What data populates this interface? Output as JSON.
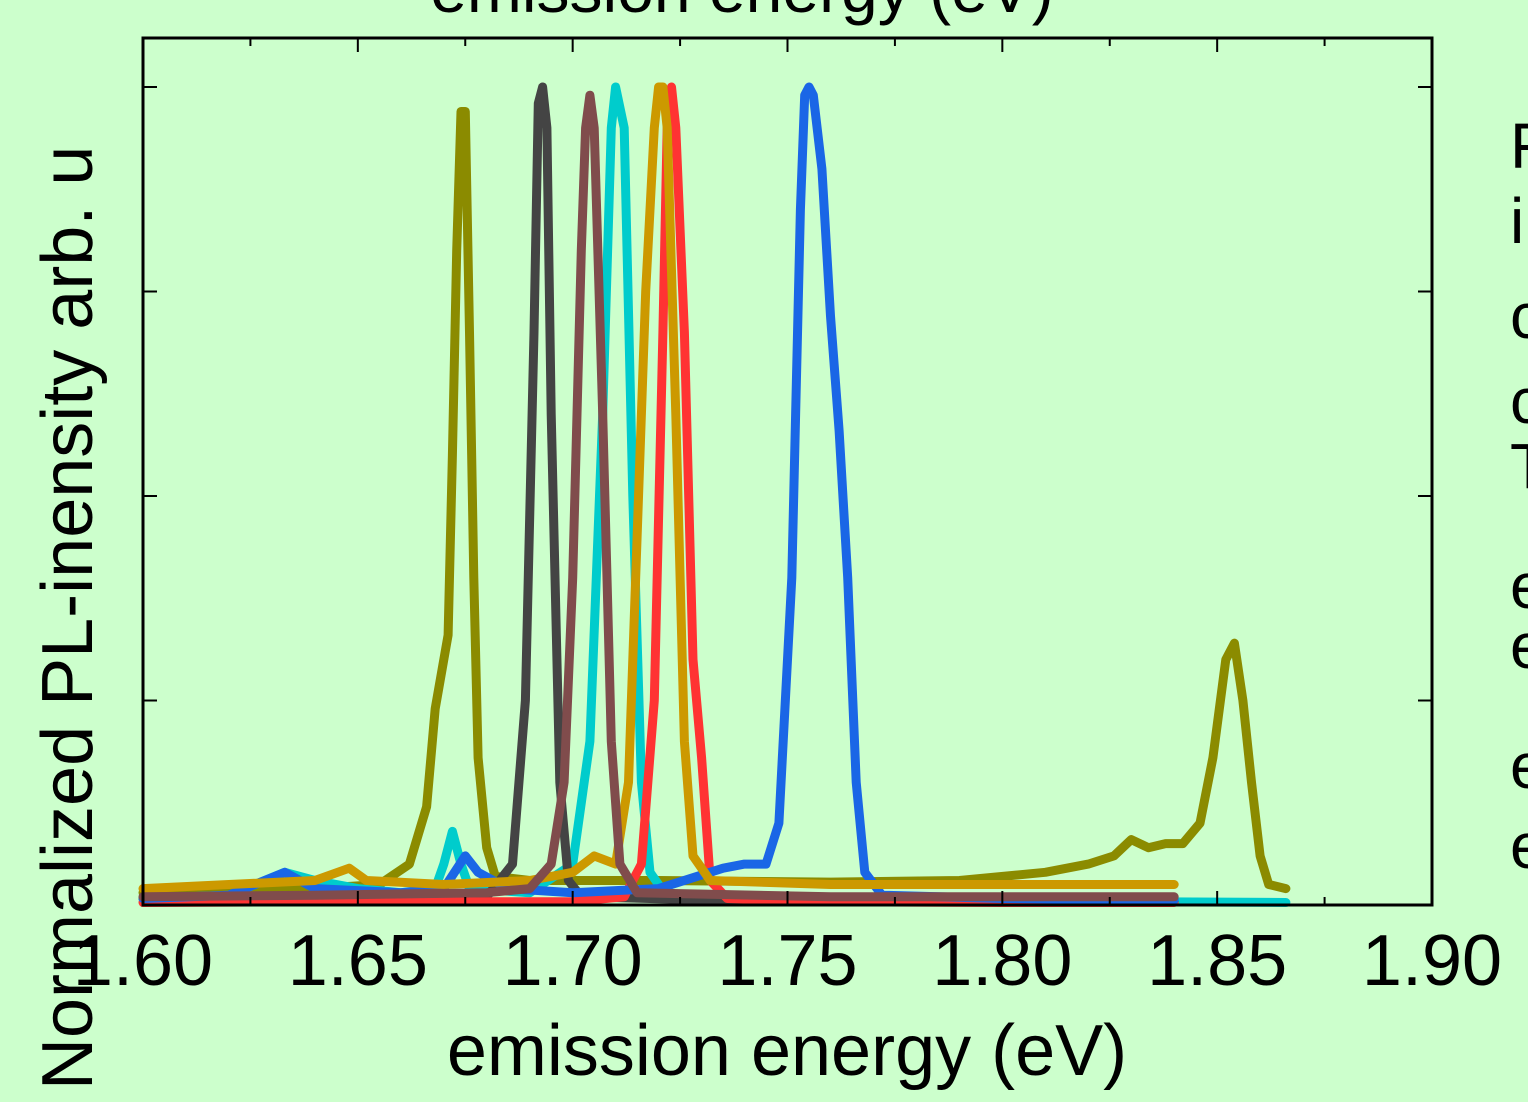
{
  "chart_data": {
    "type": "line",
    "title": "emission energy (eV)",
    "xlabel": "emission energy (eV)",
    "ylabel": "Normalized PL-inensity arb. u",
    "xlim": [
      1.6,
      1.9
    ],
    "ylim": [
      0,
      1.02
    ],
    "x_tick_labels": [
      "1.60",
      "1.65",
      "1.70",
      "1.75",
      "1.80",
      "1.85",
      "1.90"
    ],
    "x_ticks": [
      1.6,
      1.65,
      1.7,
      1.75,
      1.8,
      1.85,
      1.9
    ],
    "y_ticks": [
      0.25,
      0.5,
      0.75,
      1.0
    ],
    "grid": false,
    "background": "#ccffcc",
    "side_text": [
      "F",
      "i",
      "c",
      "c",
      "T",
      "e",
      "e",
      "e",
      "e"
    ],
    "series": [
      {
        "color": "#8b8b00",
        "values": [
          [
            1.6,
            0.015
          ],
          [
            1.62,
            0.017
          ],
          [
            1.64,
            0.02
          ],
          [
            1.655,
            0.025
          ],
          [
            1.662,
            0.05
          ],
          [
            1.666,
            0.12
          ],
          [
            1.668,
            0.24
          ],
          [
            1.67,
            0.3
          ],
          [
            1.671,
            0.33
          ],
          [
            1.672,
            0.55
          ],
          [
            1.673,
            0.8
          ],
          [
            1.674,
            0.97
          ],
          [
            1.675,
            0.97
          ],
          [
            1.676,
            0.7
          ],
          [
            1.677,
            0.4
          ],
          [
            1.678,
            0.18
          ],
          [
            1.68,
            0.07
          ],
          [
            1.682,
            0.035
          ],
          [
            1.69,
            0.03
          ],
          [
            1.7,
            0.03
          ],
          [
            1.72,
            0.03
          ],
          [
            1.76,
            0.028
          ],
          [
            1.79,
            0.03
          ],
          [
            1.81,
            0.04
          ],
          [
            1.82,
            0.05
          ],
          [
            1.826,
            0.06
          ],
          [
            1.83,
            0.08
          ],
          [
            1.834,
            0.07
          ],
          [
            1.838,
            0.075
          ],
          [
            1.842,
            0.075
          ],
          [
            1.846,
            0.1
          ],
          [
            1.849,
            0.18
          ],
          [
            1.852,
            0.3
          ],
          [
            1.854,
            0.32
          ],
          [
            1.856,
            0.25
          ],
          [
            1.858,
            0.15
          ],
          [
            1.86,
            0.06
          ],
          [
            1.862,
            0.025
          ],
          [
            1.866,
            0.02
          ]
        ]
      },
      {
        "color": "#00cccc",
        "values": [
          [
            1.6,
            0.008
          ],
          [
            1.62,
            0.012
          ],
          [
            1.633,
            0.04
          ],
          [
            1.64,
            0.03
          ],
          [
            1.65,
            0.02
          ],
          [
            1.66,
            0.015
          ],
          [
            1.668,
            0.02
          ],
          [
            1.67,
            0.05
          ],
          [
            1.672,
            0.09
          ],
          [
            1.674,
            0.05
          ],
          [
            1.676,
            0.02
          ],
          [
            1.69,
            0.015
          ],
          [
            1.7,
            0.05
          ],
          [
            1.704,
            0.2
          ],
          [
            1.707,
            0.6
          ],
          [
            1.709,
            0.95
          ],
          [
            1.71,
            1.0
          ],
          [
            1.712,
            0.95
          ],
          [
            1.714,
            0.5
          ],
          [
            1.716,
            0.15
          ],
          [
            1.718,
            0.04
          ],
          [
            1.722,
            0.01
          ],
          [
            1.76,
            0.005
          ],
          [
            1.8,
            0.005
          ],
          [
            1.866,
            0.003
          ]
        ]
      },
      {
        "color": "#444444",
        "values": [
          [
            1.6,
            0.008
          ],
          [
            1.64,
            0.01
          ],
          [
            1.68,
            0.01
          ],
          [
            1.686,
            0.05
          ],
          [
            1.689,
            0.25
          ],
          [
            1.691,
            0.7
          ],
          [
            1.692,
            0.98
          ],
          [
            1.693,
            1.0
          ],
          [
            1.694,
            0.95
          ],
          [
            1.695,
            0.6
          ],
          [
            1.697,
            0.15
          ],
          [
            1.699,
            0.03
          ],
          [
            1.702,
            0.01
          ],
          [
            1.74,
            0.005
          ],
          [
            1.8,
            0.004
          ],
          [
            1.84,
            0.004
          ]
        ]
      },
      {
        "color": "#ff3333",
        "values": [
          [
            1.6,
            0.003
          ],
          [
            1.64,
            0.004
          ],
          [
            1.7,
            0.004
          ],
          [
            1.712,
            0.01
          ],
          [
            1.716,
            0.05
          ],
          [
            1.719,
            0.25
          ],
          [
            1.721,
            0.7
          ],
          [
            1.722,
            0.95
          ],
          [
            1.723,
            1.0
          ],
          [
            1.724,
            0.95
          ],
          [
            1.726,
            0.7
          ],
          [
            1.728,
            0.3
          ],
          [
            1.73,
            0.18
          ],
          [
            1.732,
            0.03
          ],
          [
            1.736,
            0.008
          ],
          [
            1.76,
            0.004
          ],
          [
            1.8,
            0.003
          ],
          [
            1.84,
            0.003
          ]
        ]
      },
      {
        "color": "#1a66e6",
        "values": [
          [
            1.6,
            0.008
          ],
          [
            1.62,
            0.012
          ],
          [
            1.633,
            0.04
          ],
          [
            1.64,
            0.02
          ],
          [
            1.66,
            0.015
          ],
          [
            1.67,
            0.02
          ],
          [
            1.675,
            0.06
          ],
          [
            1.678,
            0.04
          ],
          [
            1.685,
            0.02
          ],
          [
            1.7,
            0.015
          ],
          [
            1.72,
            0.02
          ],
          [
            1.735,
            0.045
          ],
          [
            1.74,
            0.05
          ],
          [
            1.745,
            0.05
          ],
          [
            1.748,
            0.1
          ],
          [
            1.751,
            0.4
          ],
          [
            1.753,
            0.85
          ],
          [
            1.754,
            0.99
          ],
          [
            1.755,
            1.0
          ],
          [
            1.756,
            0.99
          ],
          [
            1.758,
            0.9
          ],
          [
            1.76,
            0.72
          ],
          [
            1.762,
            0.58
          ],
          [
            1.764,
            0.4
          ],
          [
            1.766,
            0.15
          ],
          [
            1.768,
            0.04
          ],
          [
            1.772,
            0.012
          ],
          [
            1.8,
            0.008
          ],
          [
            1.84,
            0.006
          ]
        ]
      },
      {
        "color": "#cc9900",
        "values": [
          [
            1.6,
            0.02
          ],
          [
            1.62,
            0.025
          ],
          [
            1.64,
            0.03
          ],
          [
            1.648,
            0.045
          ],
          [
            1.652,
            0.03
          ],
          [
            1.67,
            0.025
          ],
          [
            1.69,
            0.03
          ],
          [
            1.7,
            0.04
          ],
          [
            1.705,
            0.06
          ],
          [
            1.71,
            0.05
          ],
          [
            1.713,
            0.15
          ],
          [
            1.715,
            0.45
          ],
          [
            1.717,
            0.75
          ],
          [
            1.719,
            0.95
          ],
          [
            1.72,
            1.0
          ],
          [
            1.721,
            1.0
          ],
          [
            1.722,
            0.95
          ],
          [
            1.724,
            0.6
          ],
          [
            1.726,
            0.2
          ],
          [
            1.728,
            0.06
          ],
          [
            1.732,
            0.03
          ],
          [
            1.76,
            0.025
          ],
          [
            1.8,
            0.025
          ],
          [
            1.84,
            0.025
          ]
        ]
      },
      {
        "color": "#804c4c",
        "values": [
          [
            1.6,
            0.01
          ],
          [
            1.64,
            0.012
          ],
          [
            1.68,
            0.015
          ],
          [
            1.69,
            0.02
          ],
          [
            1.695,
            0.05
          ],
          [
            1.698,
            0.15
          ],
          [
            1.7,
            0.4
          ],
          [
            1.702,
            0.8
          ],
          [
            1.703,
            0.95
          ],
          [
            1.704,
            0.99
          ],
          [
            1.705,
            0.95
          ],
          [
            1.707,
            0.6
          ],
          [
            1.709,
            0.2
          ],
          [
            1.711,
            0.05
          ],
          [
            1.715,
            0.015
          ],
          [
            1.76,
            0.01
          ],
          [
            1.8,
            0.01
          ],
          [
            1.84,
            0.01
          ]
        ]
      }
    ]
  }
}
